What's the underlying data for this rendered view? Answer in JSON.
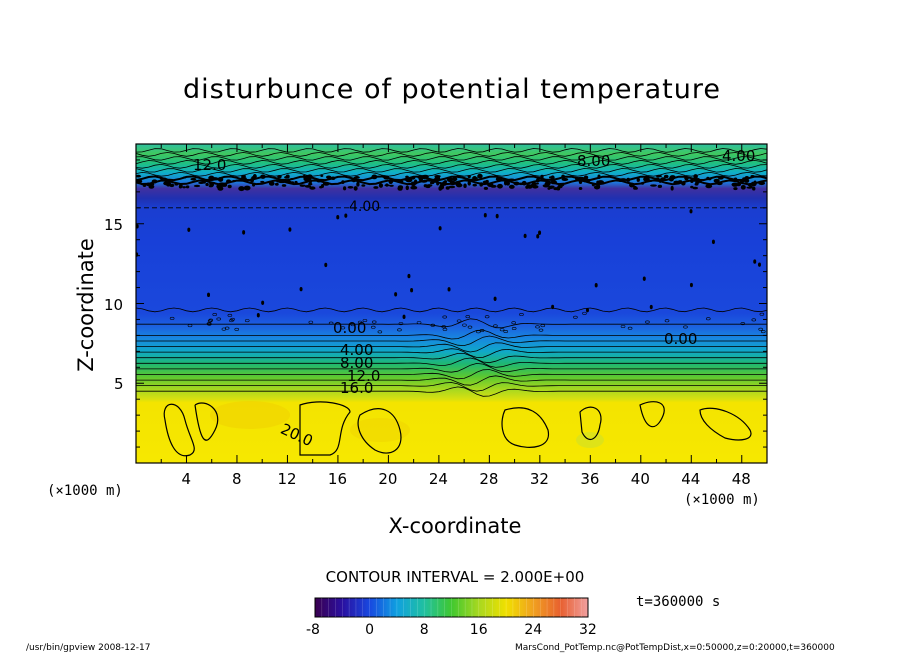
{
  "chart_data": {
    "type": "heatmap",
    "title": "disturbunce of potential temperature",
    "xlabel": "X-coordinate",
    "ylabel": "Z-coordinate",
    "x_unit": "(×1000 m)",
    "x_unit_right": "(×1000 m)",
    "xlim": [
      0,
      50
    ],
    "ylim": [
      0,
      20
    ],
    "x_ticks": [
      "4",
      "8",
      "12",
      "16",
      "20",
      "24",
      "28",
      "32",
      "36",
      "40",
      "44",
      "48"
    ],
    "y_ticks": [
      "5",
      "10",
      "15"
    ],
    "contour_labels": [
      "12.0",
      "8.00",
      "4.00",
      "4.00",
      "0.00",
      "0.00",
      "4.00",
      "8.00",
      "12.0",
      "16.0",
      "20.0"
    ],
    "contour_interval": "CONTOUR INTERVAL = 2.000E+00",
    "colorbar": {
      "range": [
        -8,
        32
      ],
      "ticks": [
        "-8",
        "0",
        "8",
        "16",
        "24",
        "32"
      ]
    },
    "time_label": "t=360000 s",
    "bands": [
      {
        "z_bottom": 0,
        "z_top": 4.2,
        "value": 20
      },
      {
        "z_bottom": 4.2,
        "z_top": 8.5,
        "value": 8
      },
      {
        "z_bottom": 8.5,
        "z_top": 17.5,
        "value": -2
      },
      {
        "z_bottom": 17.5,
        "z_top": 20,
        "value": 10
      }
    ]
  },
  "footer": {
    "left": "/usr/bin/gpview  2008-12-17",
    "right": "MarsCond_PotTemp.nc@PotTempDist,x=0:50000,z=0:20000,t=360000"
  },
  "colors": {
    "yellow": "#f4e400",
    "blue": "#1848e0",
    "green": "#30c070",
    "cyan": "#20b8e8"
  }
}
